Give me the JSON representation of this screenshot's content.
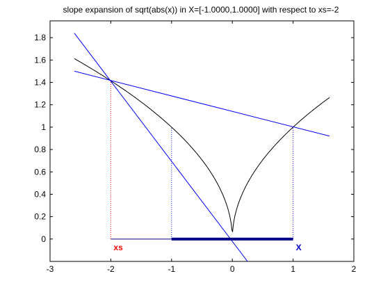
{
  "chart_data": {
    "type": "line",
    "title": "slope expansion of sqrt(abs(x)) in X=[-1.0000,1.0000] with respect to xs=-2",
    "xlabel": "",
    "ylabel": "",
    "xlim": [
      -3,
      2
    ],
    "ylim": [
      -0.2,
      1.95
    ],
    "x_ticks": [
      -3,
      -2,
      -1,
      0,
      1,
      2
    ],
    "x_tick_labels": [
      "-3",
      "-2",
      "-1",
      "0",
      "1",
      "2"
    ],
    "y_ticks": [
      0,
      0.2,
      0.4,
      0.6,
      0.8,
      1,
      1.2,
      1.4,
      1.6,
      1.8
    ],
    "y_tick_labels": [
      "0",
      "0.2",
      "0.4",
      "0.6",
      "0.8",
      "1",
      "1.2",
      "1.4",
      "1.6",
      "1.8"
    ],
    "grid": false,
    "function": {
      "expression": "sqrt(abs(x))",
      "x_range": [
        -2.6,
        1.6
      ],
      "color": "#000000"
    },
    "slope_lines": [
      {
        "x": [
          -2.6,
          1.6
        ],
        "y": [
          1.5,
          0.92
        ],
        "color": "#0000ff"
      },
      {
        "x": [
          -2.6,
          0.25
        ],
        "y": [
          1.84,
          -0.2
        ],
        "color": "#0000ff"
      }
    ],
    "guide_lines": [
      {
        "x": [
          -2,
          -2
        ],
        "y": [
          0,
          1.414
        ],
        "color": "#ff0000",
        "style": "dotted"
      },
      {
        "x": [
          -1,
          -1
        ],
        "y": [
          0,
          1
        ],
        "color": "#0000ff",
        "style": "dotted"
      },
      {
        "x": [
          1,
          1
        ],
        "y": [
          0,
          1
        ],
        "color": "#0000ff",
        "style": "dotted"
      }
    ],
    "axis_segments": [
      {
        "x": [
          -2,
          -1
        ],
        "y": [
          0,
          0
        ],
        "color": "#00008b",
        "width": "thin"
      },
      {
        "x": [
          -1,
          1
        ],
        "y": [
          0,
          0
        ],
        "color": "#00008b",
        "width": "thick"
      }
    ],
    "annotations": [
      {
        "text": "xs",
        "x": -2,
        "color": "#ff0000"
      },
      {
        "text": "X",
        "x": 1,
        "color": "#0000cd"
      }
    ]
  }
}
